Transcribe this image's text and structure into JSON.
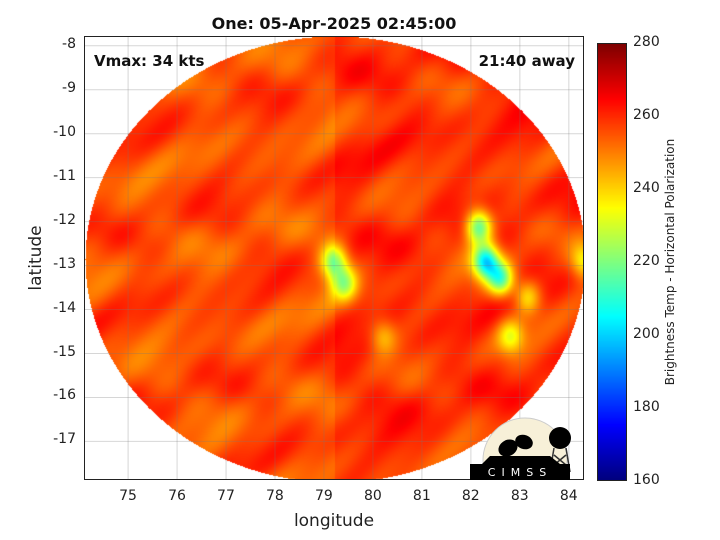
{
  "chart_data": {
    "type": "heatmap",
    "title": "One: 05-Apr-2025 02:45:00",
    "xlabel": "longitude",
    "ylabel": "latitude",
    "xlim": [
      74.12,
      84.33
    ],
    "ylim": [
      -17.9,
      -7.8
    ],
    "xticks": [
      75,
      76,
      77,
      78,
      79,
      80,
      81,
      82,
      83,
      84
    ],
    "yticks": [
      -8,
      -9,
      -10,
      -11,
      -12,
      -13,
      -14,
      -15,
      -16,
      -17
    ],
    "grid": true,
    "colormap": "jet",
    "colorbar": {
      "label": "Brightness Temp - Horizontal Polarization",
      "range": [
        160,
        280
      ],
      "ticks": [
        280,
        260,
        240,
        220,
        200,
        180,
        160
      ]
    },
    "background_temp": 258,
    "features": [
      {
        "lon": 79.2,
        "lat": -12.9,
        "min_temp": 222
      },
      {
        "lon": 79.4,
        "lat": -13.4,
        "min_temp": 228
      },
      {
        "lon": 82.15,
        "lat": -12.1,
        "min_temp": 212
      },
      {
        "lon": 82.3,
        "lat": -12.9,
        "min_temp": 205
      },
      {
        "lon": 82.6,
        "lat": -13.3,
        "min_temp": 215
      },
      {
        "lon": 83.15,
        "lat": -13.7,
        "min_temp": 235
      },
      {
        "lon": 82.8,
        "lat": -14.6,
        "min_temp": 236
      },
      {
        "lon": 80.2,
        "lat": -14.6,
        "min_temp": 242
      },
      {
        "lon": 84.3,
        "lat": -12.9,
        "min_temp": 235
      }
    ],
    "annotations": {
      "left": "Vmax: 34 kts",
      "right": "21:40 away"
    }
  },
  "logo": "CIMSS"
}
